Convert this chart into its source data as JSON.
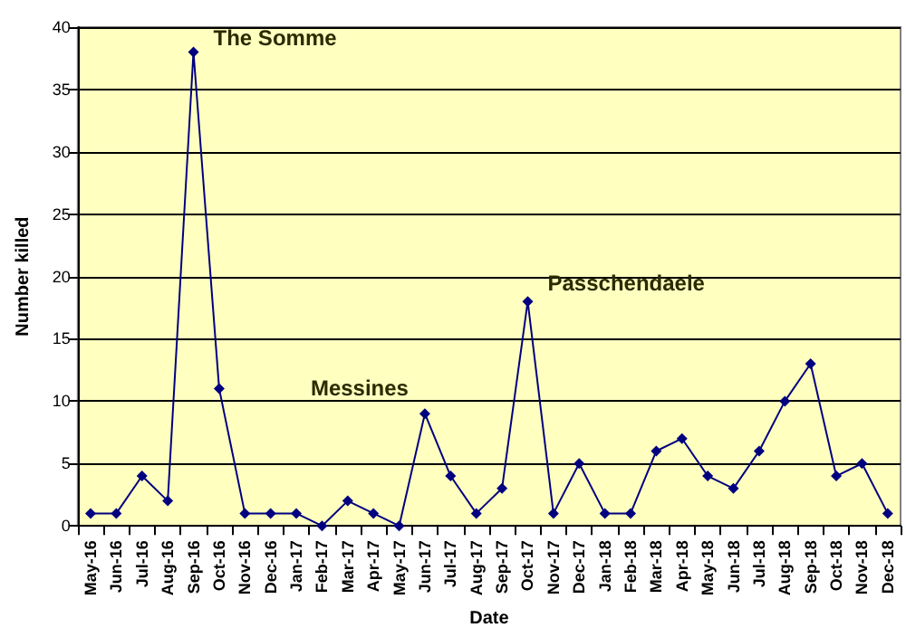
{
  "chart_data": {
    "type": "line",
    "xlabel": "Date",
    "ylabel": "Number killed",
    "categories": [
      "May-16",
      "Jun-16",
      "Jul-16",
      "Aug-16",
      "Sep-16",
      "Oct-16",
      "Nov-16",
      "Dec-16",
      "Jan-17",
      "Feb-17",
      "Mar-17",
      "Apr-17",
      "May-17",
      "Jun-17",
      "Jul-17",
      "Aug-17",
      "Sep-17",
      "Oct-17",
      "Nov-17",
      "Dec-17",
      "Jan-18",
      "Feb-18",
      "Mar-18",
      "Apr-18",
      "May-18",
      "Jun-18",
      "Jul-18",
      "Aug-18",
      "Sep-18",
      "Oct-18",
      "Nov-18",
      "Dec-18"
    ],
    "series": [
      {
        "color": "#000080",
        "values": [
          1,
          1,
          4,
          2,
          38,
          11,
          1,
          1,
          1,
          0,
          2,
          1,
          0,
          9,
          4,
          1,
          3,
          18,
          1,
          5,
          1,
          1,
          6,
          7,
          4,
          3,
          6,
          10,
          13,
          4,
          5,
          1
        ]
      }
    ],
    "ylim": [
      0,
      40
    ],
    "yticks": [
      0,
      5,
      10,
      15,
      20,
      25,
      30,
      35,
      40
    ],
    "grid": "y",
    "marker": "diamond",
    "line_style": "solid",
    "annotations": [
      {
        "text": "The Somme",
        "x": "Sep-16",
        "y": 38
      },
      {
        "text": "Messines",
        "x": "Jun-17",
        "y": 9
      },
      {
        "text": "Passchendaele",
        "x": "Oct-17",
        "y": 18
      }
    ]
  }
}
